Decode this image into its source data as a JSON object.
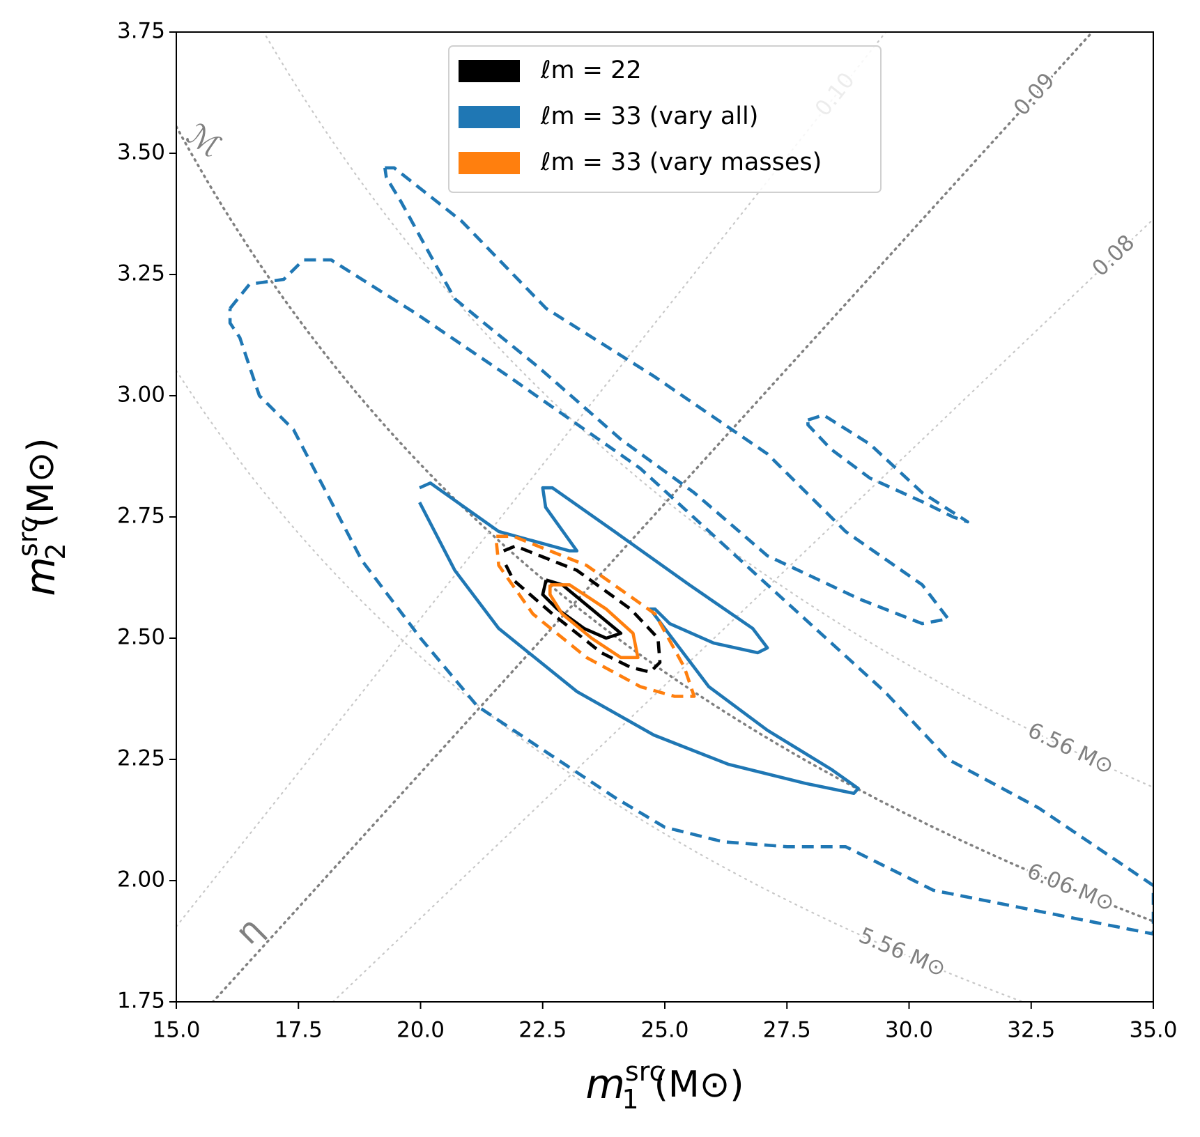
{
  "chart_data": {
    "type": "contour",
    "xlabel": {
      "symbol": "m",
      "sup": "src",
      "sub": "1",
      "unit": "(M⊙)"
    },
    "ylabel": {
      "symbol": "m",
      "sup": "src",
      "sub": "2",
      "unit": "(M⊙)"
    },
    "xlim": [
      15,
      35
    ],
    "ylim": [
      1.75,
      3.75
    ],
    "xticks": [
      {
        "value": 15,
        "label": "15.0"
      },
      17.5,
      {
        "value": 20,
        "label": "20.0"
      },
      22.5,
      {
        "value": 25,
        "label": "25.0"
      },
      27.5,
      {
        "value": 30,
        "label": "30.0"
      },
      32.5,
      {
        "value": 35,
        "label": "35.0"
      }
    ],
    "yticks": [
      1.75,
      {
        "value": 2,
        "label": "2.00"
      },
      2.25,
      {
        "value": 2.5,
        "label": "2.50"
      },
      2.75,
      {
        "value": 3,
        "label": "3.00"
      },
      3.25,
      {
        "value": 3.5,
        "label": "3.50"
      },
      3.75
    ],
    "legend": "upper center",
    "chirp_mass_symbol": "ℳ",
    "eta_symbol": "η",
    "chirp_mass_curves": [
      {
        "value": 6.56,
        "label": "6.56 M⊙",
        "color": "#c8c8c8"
      },
      {
        "value": 6.06,
        "label": "6.06 M⊙",
        "color": "#808080"
      },
      {
        "value": 5.56,
        "label": "5.56 M⊙",
        "color": "#c8c8c8"
      }
    ],
    "eta_curves": [
      {
        "value": 0.1,
        "label": "0.10",
        "color": "#c8c8c8"
      },
      {
        "value": 0.09,
        "label": "0.09",
        "color": "#808080"
      },
      {
        "value": 0.08,
        "label": "0.08",
        "color": "#c8c8c8"
      }
    ],
    "series": [
      {
        "name": "ℓm = 22",
        "color": "#000000",
        "contours": [
          {
            "linestyle": "solid",
            "x": [
              22.57,
              22.9,
              23.5,
              24.1,
              23.8,
              23.35,
              22.8,
              22.5,
              22.57
            ],
            "y": [
              2.62,
              2.61,
              2.56,
              2.51,
              2.5,
              2.52,
              2.56,
              2.59,
              2.62
            ]
          },
          {
            "linestyle": "dashed",
            "x": [
              21.7,
              21.94,
              23.2,
              24.3,
              24.86,
              24.9,
              24.7,
              24.3,
              23.7,
              22.7,
              21.9,
              21.7
            ],
            "y": [
              2.68,
              2.69,
              2.64,
              2.56,
              2.5,
              2.45,
              2.43,
              2.44,
              2.47,
              2.55,
              2.62,
              2.66
            ]
          }
        ]
      },
      {
        "name": "ℓm = 33 (vary all)",
        "color": "#1f77b4",
        "contours": [
          {
            "linestyle": "solid",
            "x": [
              19.98,
              20.2,
              21.6,
              23.05,
              23.2,
              22.56,
              22.5,
              22.7,
              23.97,
              25.5,
              26.8,
              27.1,
              26.9,
              26.0,
              25.1,
              24.8,
              24.7,
              25.0,
              25.9,
              27.1,
              28.4,
              28.96,
              28.87,
              27.9,
              26.3,
              24.78,
              23.2,
              21.6,
              20.7,
              19.98
            ],
            "y": [
              2.81,
              2.82,
              2.72,
              2.68,
              2.68,
              2.77,
              2.81,
              2.81,
              2.72,
              2.61,
              2.52,
              2.48,
              2.47,
              2.49,
              2.53,
              2.56,
              2.56,
              2.52,
              2.4,
              2.31,
              2.23,
              2.19,
              2.18,
              2.2,
              2.24,
              2.3,
              2.39,
              2.52,
              2.64,
              2.78
            ]
          },
          {
            "linestyle": "dashed",
            "x": [
              16.1,
              16.5,
              17.2,
              17.6,
              18.17,
              19.9,
              21.8,
              24.5,
              27.1,
              29.5,
              30.8,
              32.65,
              35.0,
              35.0,
              33.5,
              32.0,
              30.5,
              28.7,
              27.5,
              26.2,
              25.0,
              24.0,
              22.5,
              21.16,
              20.0,
              18.8,
              17.4,
              16.7,
              16.3,
              16.1,
              16.1
            ],
            "y": [
              3.18,
              3.23,
              3.24,
              3.28,
              3.28,
              3.17,
              3.04,
              2.85,
              2.61,
              2.39,
              2.25,
              2.15,
              1.99,
              1.89,
              1.92,
              1.95,
              1.98,
              2.07,
              2.07,
              2.08,
              2.11,
              2.17,
              2.27,
              2.36,
              2.5,
              2.66,
              2.93,
              3.0,
              3.12,
              3.15,
              3.18
            ]
          },
          {
            "linestyle": "dashed",
            "x": [
              19.27,
              19.46,
              20.84,
              22.57,
              24.78,
              27.1,
              28.7,
              30.27,
              30.8,
              30.27,
              29.0,
              27.1,
              25.6,
              24.1,
              22.4,
              21.3,
              20.7,
              20.2,
              19.6,
              19.3,
              19.27
            ],
            "y": [
              3.47,
              3.47,
              3.36,
              3.18,
              3.04,
              2.88,
              2.72,
              2.61,
              2.54,
              2.53,
              2.58,
              2.67,
              2.8,
              2.91,
              3.06,
              3.15,
              3.2,
              3.29,
              3.4,
              3.45,
              3.47
            ]
          },
          {
            "linestyle": "dashed",
            "x": [
              27.93,
              28.25,
              29.2,
              30.27,
              31.2,
              30.9,
              30.3,
              29.2,
              28.4,
              27.93,
              27.93
            ],
            "y": [
              2.95,
              2.96,
              2.9,
              2.8,
              2.74,
              2.75,
              2.78,
              2.83,
              2.89,
              2.94,
              2.95
            ]
          }
        ]
      },
      {
        "name": "ℓm = 33 (vary masses)",
        "color": "#ff7f0e",
        "contours": [
          {
            "linestyle": "solid",
            "x": [
              22.65,
              23.05,
              23.8,
              24.35,
              24.45,
              24.1,
              23.5,
              22.9,
              22.65,
              22.65
            ],
            "y": [
              2.61,
              2.61,
              2.56,
              2.51,
              2.46,
              2.46,
              2.5,
              2.55,
              2.59,
              2.61
            ]
          },
          {
            "linestyle": "dashed",
            "x": [
              21.55,
              21.9,
              23.4,
              24.8,
              25.4,
              25.6,
              25.2,
              24.5,
              23.4,
              22.3,
              21.6,
              21.55
            ],
            "y": [
              2.71,
              2.71,
              2.65,
              2.55,
              2.44,
              2.38,
              2.38,
              2.4,
              2.46,
              2.55,
              2.65,
              2.7
            ]
          }
        ]
      }
    ]
  }
}
